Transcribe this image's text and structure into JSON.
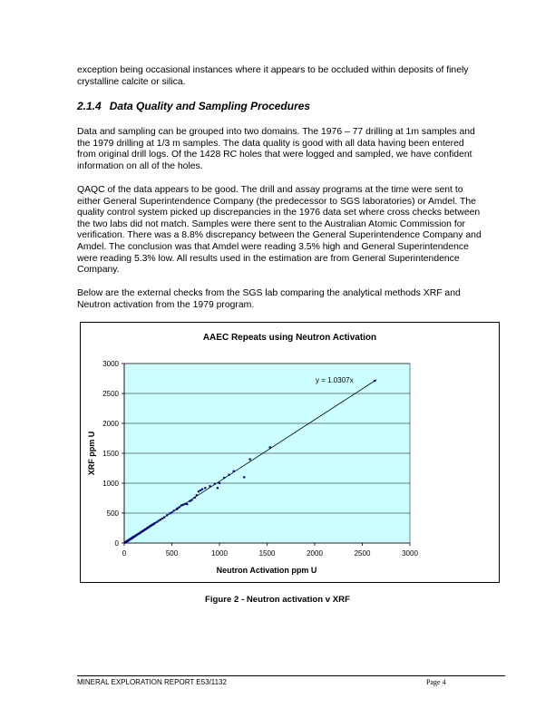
{
  "paragraphs": {
    "p0": "exception being occasional instances where it appears to be occluded within deposits of finely crystalline calcite or silica.",
    "p1": "Data and sampling can be grouped into two domains. The 1976 – 77 drilling at 1m samples and the 1979 drilling at 1/3 m samples. The data quality is good with all data having been entered from original drill logs. Of the 1428 RC holes that were logged and sampled, we have confident information on all of the holes.",
    "p2": "QAQC of the data appears to be good. The drill and assay programs at the time were sent to either General Superintendence Company (the predecessor to SGS laboratories) or Amdel. The quality control system picked up discrepancies in the 1976 data set where cross checks between the two labs did not match. Samples were there sent to the Australian Atomic Commission for verification. There was a  8.8% discrepancy between the General Superintendence Company and Amdel. The conclusion was that Amdel were reading 3.5% high and General Superintendence were reading 5.3% low. All results used in the estimation are from General Superintendence Company.",
    "p3": "Below are the external checks from the SGS lab comparing the analytical methods XRF and Neutron activation from the 1979 program."
  },
  "section": {
    "number": "2.1.4",
    "title": "Data Quality and Sampling Procedures"
  },
  "figure_caption": "Figure 2 - Neutron activation v XRF",
  "footer": {
    "left": "MINERAL EXPLORATION REPORT E53/1132",
    "right": "Page 4"
  },
  "chart_data": {
    "type": "scatter",
    "title": "AAEC Repeats using Neutron Activation",
    "xlabel": "Neutron Activation ppm U",
    "ylabel": "XRF ppm U",
    "xlim": [
      0,
      3000
    ],
    "ylim": [
      0,
      3000
    ],
    "xticks": [
      0,
      500,
      1000,
      1500,
      2000,
      2500,
      3000
    ],
    "yticks": [
      0,
      500,
      1000,
      1500,
      2000,
      2500,
      3000
    ],
    "grid": "horizontal",
    "plot_bg": "#ccffff",
    "marker_color": "#000080",
    "trendline": {
      "label": "y = 1.0307x",
      "slope": 1.0307,
      "x_range": [
        0,
        2650
      ]
    },
    "points": [
      [
        5,
        5
      ],
      [
        10,
        10
      ],
      [
        15,
        14
      ],
      [
        20,
        21
      ],
      [
        25,
        25
      ],
      [
        30,
        31
      ],
      [
        35,
        36
      ],
      [
        40,
        40
      ],
      [
        45,
        46
      ],
      [
        50,
        52
      ],
      [
        55,
        56
      ],
      [
        60,
        62
      ],
      [
        65,
        66
      ],
      [
        70,
        71
      ],
      [
        75,
        78
      ],
      [
        80,
        82
      ],
      [
        85,
        86
      ],
      [
        90,
        94
      ],
      [
        95,
        97
      ],
      [
        100,
        103
      ],
      [
        105,
        108
      ],
      [
        110,
        112
      ],
      [
        120,
        125
      ],
      [
        130,
        134
      ],
      [
        140,
        145
      ],
      [
        150,
        155
      ],
      [
        160,
        162
      ],
      [
        170,
        176
      ],
      [
        180,
        186
      ],
      [
        190,
        195
      ],
      [
        200,
        206
      ],
      [
        210,
        215
      ],
      [
        220,
        228
      ],
      [
        230,
        236
      ],
      [
        240,
        248
      ],
      [
        250,
        258
      ],
      [
        260,
        268
      ],
      [
        270,
        280
      ],
      [
        280,
        290
      ],
      [
        290,
        300
      ],
      [
        300,
        310
      ],
      [
        310,
        318
      ],
      [
        320,
        330
      ],
      [
        340,
        350
      ],
      [
        360,
        372
      ],
      [
        380,
        390
      ],
      [
        400,
        410
      ],
      [
        420,
        430
      ],
      [
        450,
        465
      ],
      [
        480,
        495
      ],
      [
        500,
        510
      ],
      [
        520,
        540
      ],
      [
        550,
        565
      ],
      [
        560,
        580
      ],
      [
        580,
        600
      ],
      [
        600,
        630
      ],
      [
        620,
        640
      ],
      [
        640,
        655
      ],
      [
        660,
        650
      ],
      [
        690,
        700
      ],
      [
        710,
        720
      ],
      [
        740,
        760
      ],
      [
        760,
        800
      ],
      [
        780,
        860
      ],
      [
        800,
        880
      ],
      [
        820,
        900
      ],
      [
        850,
        920
      ],
      [
        900,
        950
      ],
      [
        950,
        990
      ],
      [
        980,
        920
      ],
      [
        1000,
        1000
      ],
      [
        1050,
        1090
      ],
      [
        1100,
        1140
      ],
      [
        1150,
        1200
      ],
      [
        1260,
        1100
      ],
      [
        1320,
        1400
      ],
      [
        1530,
        1600
      ],
      [
        2630,
        2710
      ]
    ]
  }
}
